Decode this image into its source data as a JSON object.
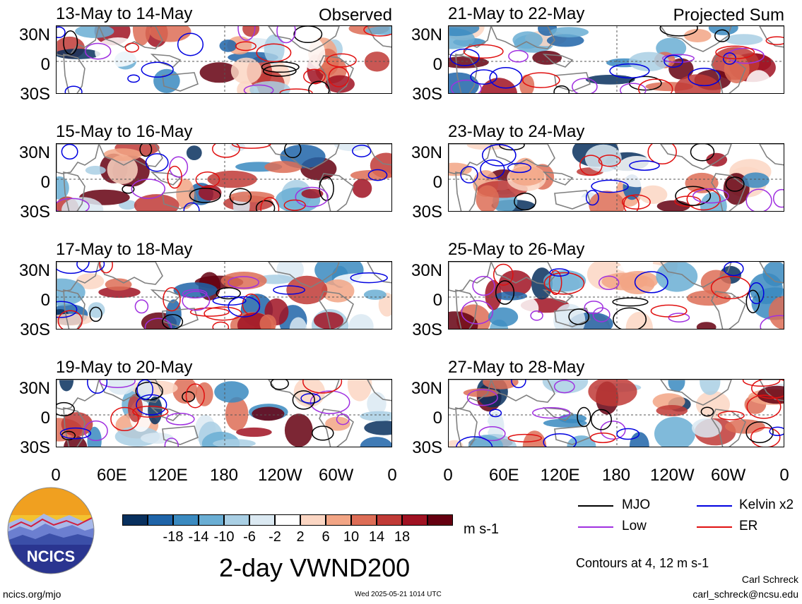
{
  "panels": [
    {
      "title": "13-May to 14-May",
      "tag": "Observed",
      "seed": 11
    },
    {
      "title": "21-May to 22-May",
      "tag": "Projected Sum",
      "seed": 21
    },
    {
      "title": "15-May to 16-May",
      "tag": "",
      "seed": 31
    },
    {
      "title": "23-May to 24-May",
      "tag": "",
      "seed": 41
    },
    {
      "title": "17-May to 18-May",
      "tag": "",
      "seed": 51
    },
    {
      "title": "25-May to 26-May",
      "tag": "",
      "seed": 61
    },
    {
      "title": "19-May to 20-May",
      "tag": "",
      "seed": 71
    },
    {
      "title": "27-May to 28-May",
      "tag": "",
      "seed": 81
    }
  ],
  "lat_labels": [
    "30N",
    "0",
    "30S"
  ],
  "lon_labels": [
    "0",
    "60E",
    "120E",
    "180",
    "120W",
    "60W",
    "0"
  ],
  "colorbar": {
    "colors": [
      "#08305e",
      "#1f64a8",
      "#3a8ac0",
      "#6aaed4",
      "#a9cfe4",
      "#dbe9f2",
      "#ffffff",
      "#fbd6c3",
      "#f2a585",
      "#dd6d56",
      "#c03a36",
      "#a01222",
      "#650010"
    ],
    "labels": [
      "-18",
      "-14",
      "-10",
      "-6",
      "-2",
      "2",
      "6",
      "10",
      "14",
      "18"
    ],
    "units": "m s-1"
  },
  "legend": {
    "items": [
      {
        "label": "MJO",
        "color": "#000000"
      },
      {
        "label": "Kelvin x2",
        "color": "#0000e0"
      },
      {
        "label": "Low",
        "color": "#a030e0"
      },
      {
        "label": "ER",
        "color": "#e01010"
      }
    ],
    "contours_note": "Contours at 4, 12 m s-1"
  },
  "main_title": "2-day VWND200",
  "logo_text": "NCICS",
  "footer": {
    "url": "ncics.org/mjo",
    "timestamp": "Wed 2025-05-21 1014 UTC",
    "author": "Carl Schreck",
    "email": "carl_schreck@ncsu.edu"
  }
}
